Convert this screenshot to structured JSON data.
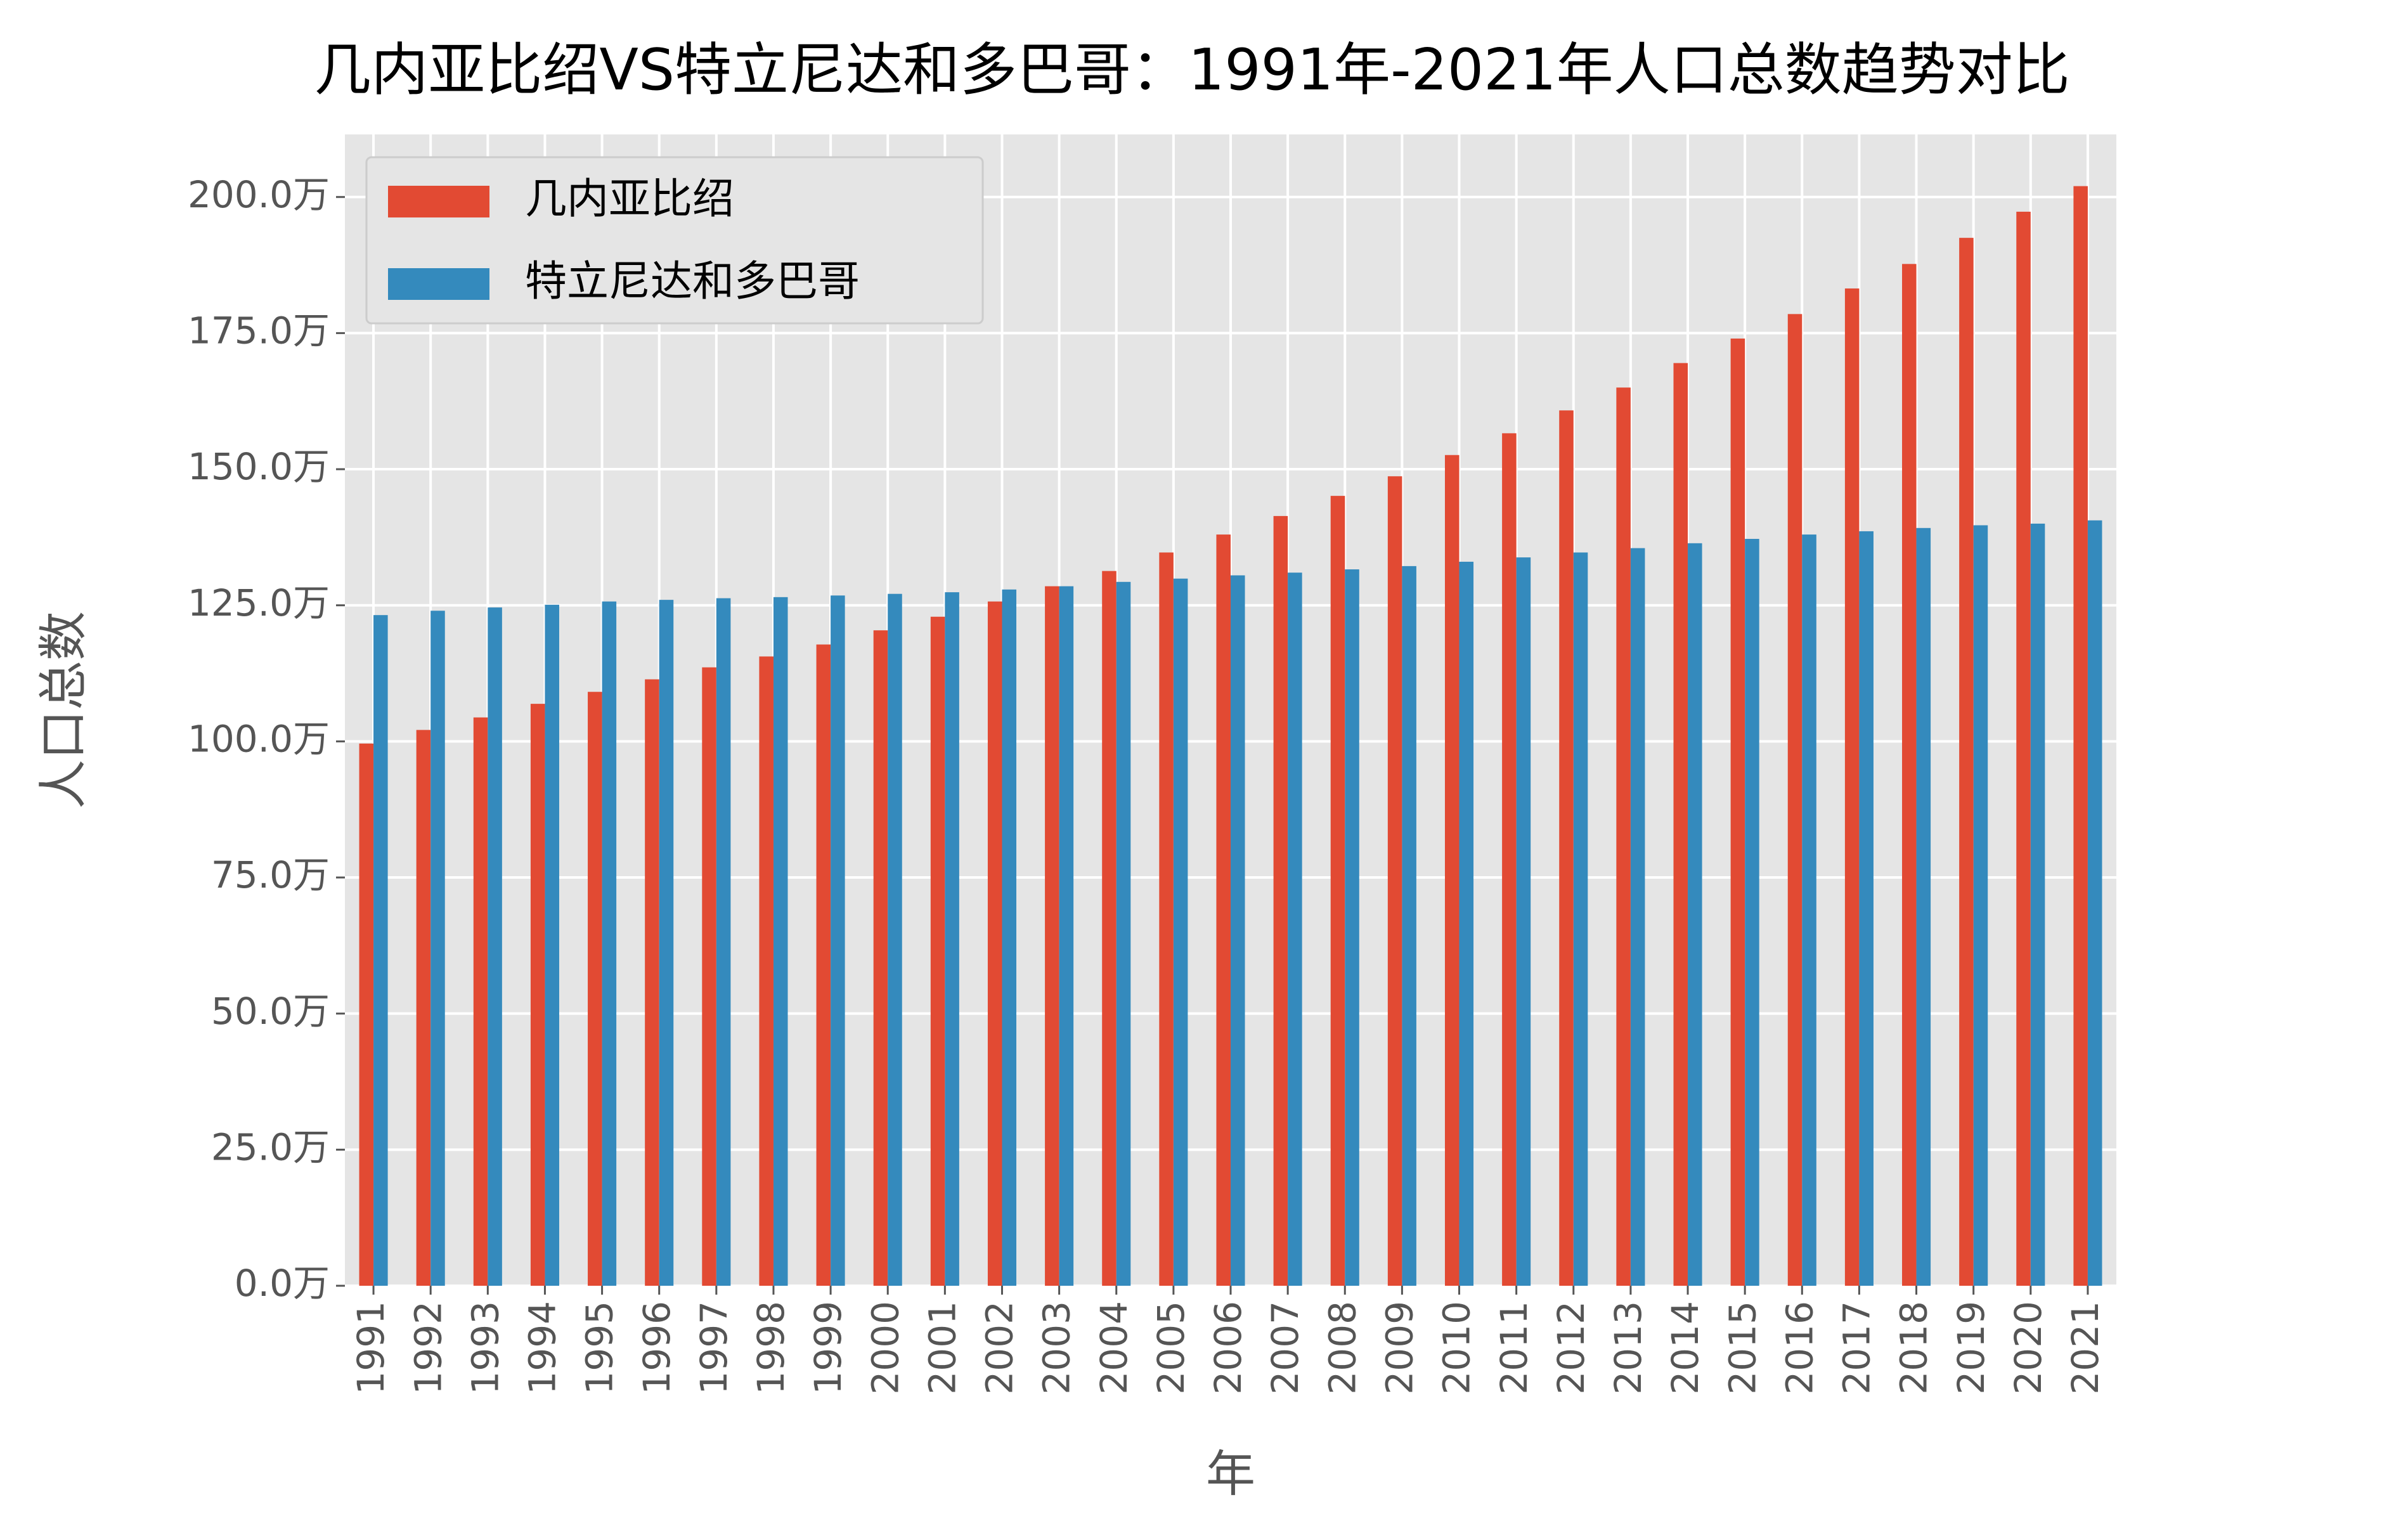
{
  "chart_data": {
    "type": "bar",
    "title": "几内亚比绍VS特立尼达和多巴哥：1991年-2021年人口总数趋势对比",
    "x_label": "年",
    "y_label": "人口总数",
    "categories": [
      "1991",
      "1992",
      "1993",
      "1994",
      "1995",
      "1996",
      "1997",
      "1998",
      "1999",
      "2000",
      "2001",
      "2002",
      "2003",
      "2004",
      "2005",
      "2006",
      "2007",
      "2008",
      "2009",
      "2010",
      "2011",
      "2012",
      "2013",
      "2014",
      "2015",
      "2016",
      "2017",
      "2018",
      "2019",
      "2020",
      "2021"
    ],
    "series": [
      {
        "name": "几内亚比绍",
        "color": "#e24a33",
        "values": [
          99.6,
          102.1,
          104.4,
          106.9,
          109.1,
          111.4,
          113.6,
          115.6,
          117.8,
          120.4,
          122.9,
          125.7,
          128.5,
          131.3,
          134.7,
          138.0,
          141.4,
          145.1,
          148.7,
          152.6,
          156.6,
          160.8,
          165.0,
          169.5,
          174.0,
          178.5,
          183.2,
          187.7,
          192.5,
          197.3,
          202.0
        ]
      },
      {
        "name": "特立尼达和多巴哥",
        "color": "#348abd",
        "values": [
          123.2,
          124.0,
          124.6,
          125.1,
          125.7,
          126.0,
          126.3,
          126.5,
          126.8,
          127.1,
          127.4,
          127.9,
          128.5,
          129.3,
          129.9,
          130.5,
          131.0,
          131.6,
          132.2,
          133.0,
          133.8,
          134.7,
          135.5,
          136.4,
          137.2,
          138.0,
          138.6,
          139.2,
          139.7,
          140.0,
          140.6
        ]
      }
    ],
    "ylim": [
      0,
      211.5
    ],
    "yticks": [
      {
        "value": 0,
        "label": "0.0万"
      },
      {
        "value": 25,
        "label": "25.0万"
      },
      {
        "value": 50,
        "label": "50.0万"
      },
      {
        "value": 75,
        "label": "75.0万"
      },
      {
        "value": 100,
        "label": "100.0万"
      },
      {
        "value": 125,
        "label": "125.0万"
      },
      {
        "value": 150,
        "label": "150.0万"
      },
      {
        "value": 175,
        "label": "175.0万"
      },
      {
        "value": 200,
        "label": "200.0万"
      }
    ],
    "grid": true,
    "legend": "upper left"
  }
}
